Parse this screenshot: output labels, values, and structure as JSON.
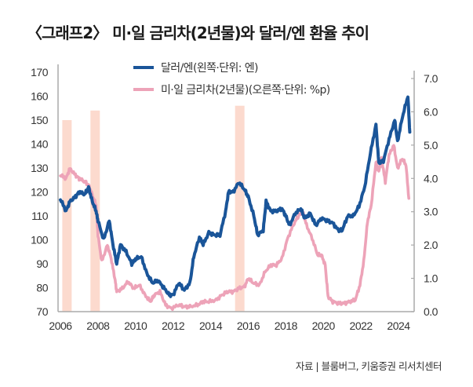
{
  "title": "〈그래프2〉 미·일 금리차(2년물)와 달러/엔 환율 추이",
  "source": "자료 | 블룸버그, 키움증권 리서치센터",
  "colors": {
    "usdjpy": "#1a5599",
    "spread": "#eda3b8",
    "shade": "#fbd3c6",
    "axis": "#aaaaaa"
  },
  "chart_data": {
    "type": "line",
    "title": "〈그래프2〉 미·일 금리차(2년물)와 달러/엔 환율 추이",
    "xlabel": "",
    "ylabel_left": "엔",
    "ylabel_right": "%p",
    "xlim": [
      2005.9,
      2025.0
    ],
    "ylim_left": [
      70,
      170
    ],
    "ylim_right": [
      0.0,
      7.0
    ],
    "x_ticks": [
      "2006",
      "2008",
      "2010",
      "2012",
      "2014",
      "2016",
      "2018",
      "2020",
      "2022",
      "2024"
    ],
    "y_ticks_left": [
      "170",
      "160",
      "150",
      "140",
      "130",
      "120",
      "110",
      "100",
      "90",
      "80",
      "70"
    ],
    "y_ticks_right": [
      "7.0",
      "6.0",
      "5.0",
      "4.0",
      "3.0",
      "2.0",
      "1.0",
      "0.0"
    ],
    "grid": false,
    "legend_position": "top-center",
    "legend": [
      "달러/엔(왼쪽·단위: 엔)",
      "미·일 금리차(2년물)(오른쪽·단위: %p)"
    ],
    "shaded_periods": [
      {
        "start": 2006.1,
        "end": 2006.6,
        "top_left_axis": 150
      },
      {
        "start": 2007.6,
        "end": 2008.1,
        "top_left_axis": 154
      },
      {
        "start": 2015.3,
        "end": 2015.8,
        "top_left_axis": 156
      }
    ],
    "series": [
      {
        "name": "달러/엔(왼쪽·단위: 엔)",
        "axis": "left",
        "x": [
          2006.0,
          2006.3,
          2006.5,
          2006.8,
          2007.0,
          2007.3,
          2007.5,
          2007.7,
          2007.9,
          2008.0,
          2008.3,
          2008.6,
          2008.8,
          2009.0,
          2009.2,
          2009.5,
          2009.8,
          2010.0,
          2010.3,
          2010.6,
          2010.9,
          2011.2,
          2011.5,
          2011.8,
          2012.0,
          2012.3,
          2012.6,
          2012.9,
          2013.1,
          2013.4,
          2013.6,
          2013.9,
          2014.2,
          2014.5,
          2014.8,
          2014.95,
          2015.2,
          2015.5,
          2015.8,
          2016.0,
          2016.3,
          2016.5,
          2016.8,
          2016.95,
          2017.2,
          2017.5,
          2017.8,
          2018.0,
          2018.2,
          2018.5,
          2018.8,
          2019.0,
          2019.3,
          2019.6,
          2019.9,
          2020.2,
          2020.5,
          2020.8,
          2021.0,
          2021.3,
          2021.6,
          2021.9,
          2022.2,
          2022.5,
          2022.8,
          2022.95,
          2023.2,
          2023.5,
          2023.8,
          2023.95,
          2024.2,
          2024.5,
          2024.6
        ],
        "values": [
          117,
          112,
          116,
          118,
          120,
          119,
          122,
          116,
          112,
          108,
          100,
          108,
          98,
          90,
          98,
          95,
          90,
          92,
          93,
          86,
          82,
          83,
          80,
          77,
          77,
          82,
          79,
          82,
          93,
          101,
          98,
          103,
          102,
          102,
          112,
          120,
          120,
          124,
          121,
          118,
          110,
          102,
          104,
          116,
          112,
          112,
          113,
          110,
          106,
          111,
          113,
          109,
          111,
          106,
          109,
          108,
          107,
          104,
          104,
          110,
          110,
          114,
          122,
          136,
          148,
          132,
          133,
          142,
          150,
          141,
          151,
          160,
          145
        ]
      },
      {
        "name": "미·일 금리차(2년물)(오른쪽·단위: %p)",
        "axis": "right",
        "x": [
          2006.0,
          2006.3,
          2006.5,
          2006.8,
          2007.0,
          2007.3,
          2007.5,
          2007.7,
          2007.9,
          2008.0,
          2008.2,
          2008.5,
          2008.7,
          2008.9,
          2009.0,
          2009.3,
          2009.6,
          2009.9,
          2010.2,
          2010.5,
          2010.8,
          2011.0,
          2011.3,
          2011.6,
          2011.9,
          2012.3,
          2012.6,
          2012.9,
          2013.3,
          2013.6,
          2013.9,
          2014.3,
          2014.6,
          2014.9,
          2015.2,
          2015.5,
          2015.8,
          2016.0,
          2016.3,
          2016.6,
          2016.9,
          2017.2,
          2017.5,
          2017.8,
          2018.1,
          2018.4,
          2018.7,
          2018.9,
          2019.1,
          2019.4,
          2019.7,
          2019.9,
          2020.1,
          2020.25,
          2020.5,
          2020.8,
          2021.1,
          2021.4,
          2021.7,
          2021.95,
          2022.15,
          2022.35,
          2022.55,
          2022.8,
          2022.95,
          2023.1,
          2023.3,
          2023.5,
          2023.75,
          2023.95,
          2024.2,
          2024.4,
          2024.55
        ],
        "values": [
          4.1,
          4.0,
          4.3,
          4.1,
          4.0,
          3.9,
          3.8,
          3.5,
          3.2,
          2.3,
          1.5,
          2.0,
          1.6,
          1.0,
          0.6,
          0.7,
          0.9,
          0.7,
          0.8,
          0.5,
          0.3,
          0.5,
          0.6,
          0.2,
          0.1,
          0.2,
          0.15,
          0.15,
          0.2,
          0.3,
          0.3,
          0.35,
          0.5,
          0.6,
          0.6,
          0.7,
          0.75,
          1.0,
          0.85,
          0.8,
          1.2,
          1.4,
          1.4,
          1.6,
          2.2,
          2.6,
          2.9,
          3.0,
          2.6,
          2.2,
          1.7,
          1.7,
          1.4,
          0.45,
          0.3,
          0.25,
          0.25,
          0.3,
          0.35,
          0.8,
          1.5,
          2.7,
          3.2,
          4.5,
          4.2,
          4.6,
          3.9,
          4.7,
          5.0,
          4.3,
          4.6,
          4.4,
          3.4
        ]
      }
    ]
  }
}
